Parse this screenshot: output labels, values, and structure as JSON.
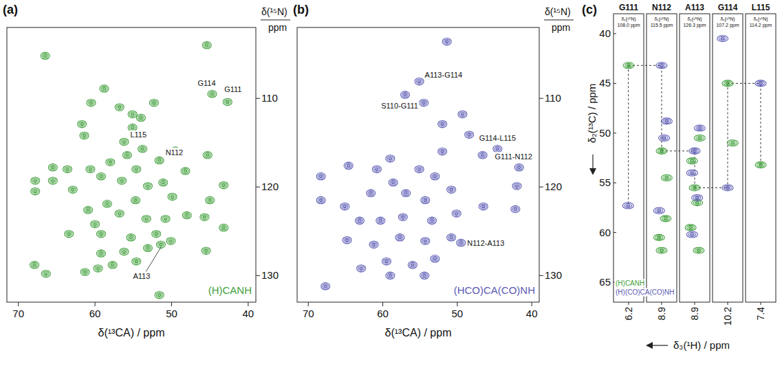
{
  "chart_data": [
    {
      "type": "scatter",
      "label": "(a)",
      "title": "(H)CANH",
      "color": "#3f9f3a",
      "xlabel": "δ(¹³CA) / ppm",
      "ylabel": [
        "δ(¹⁵N)",
        "ppm"
      ],
      "xlim": [
        71.5,
        39
      ],
      "ylim": [
        102,
        133
      ],
      "xticks": [
        70,
        60,
        50,
        40
      ],
      "yticks": [
        110,
        120,
        130
      ],
      "x": [
        45.4,
        66.5,
        44.7,
        42.7,
        58.8,
        60.5,
        52.3,
        56.8,
        55.1,
        54.0,
        61.7,
        61.4,
        55.1,
        56.2,
        53.8,
        55.8,
        51.6,
        49.5,
        48.2,
        45.3,
        65.5,
        65.5,
        67.8,
        67.8,
        63.6,
        62.9,
        60.6,
        59.2,
        58.0,
        56.5,
        54.6,
        53.1,
        51.1,
        49.9,
        54.7,
        58.4,
        60.9,
        60.0,
        56.8,
        53.3,
        50.8,
        48.0,
        45.0,
        43.2,
        45.7,
        63.4,
        59.2,
        55.3,
        52.0,
        50.1,
        53.1,
        56.2,
        59.2,
        57.7,
        59.6,
        61.3,
        54.6,
        51.4,
        67.9,
        66.4,
        51.6,
        45.5,
        43.2
      ],
      "values": [
        104.0,
        105.2,
        109.5,
        110.4,
        108.9,
        110.5,
        110.5,
        111.0,
        111.8,
        112.2,
        112.9,
        114.2,
        113.3,
        114.9,
        115.7,
        116.4,
        117.0,
        115.9,
        118.2,
        116.4,
        117.8,
        119.3,
        119.3,
        120.5,
        118.0,
        120.3,
        118.0,
        118.8,
        117.2,
        119.3,
        118.0,
        119.9,
        119.5,
        121.1,
        121.5,
        121.9,
        122.6,
        124.2,
        123.0,
        123.6,
        123.6,
        123.2,
        121.5,
        119.8,
        123.4,
        125.3,
        125.3,
        125.7,
        125.3,
        126.1,
        126.9,
        127.3,
        127.5,
        128.8,
        129.2,
        129.6,
        128.4,
        126.5,
        128.8,
        129.8,
        132.2,
        127.2,
        124.6
      ],
      "annotations": [
        {
          "text": "G114",
          "x": 44.7,
          "y": 109.5
        },
        {
          "text": "G111",
          "x": 42.7,
          "y": 110.4
        },
        {
          "text": "L115",
          "x": 56.2,
          "y": 114.9
        },
        {
          "text": "N112",
          "x": 51.6,
          "y": 117.0
        },
        {
          "text": "A113",
          "x": 51.4,
          "y": 126.5
        }
      ]
    },
    {
      "type": "scatter",
      "label": "(b)",
      "title": "(HCO)CA(CO)NH",
      "color": "#5a5ab4",
      "xlabel": "δ(¹³CA) / ppm",
      "ylabel": [
        "δ(¹⁵N)",
        "ppm"
      ],
      "xlim": [
        71.5,
        39
      ],
      "ylim": [
        102,
        133
      ],
      "xticks": [
        70,
        60,
        50,
        40
      ],
      "yticks": [
        110,
        120,
        130
      ],
      "x": [
        51.4,
        55.1,
        57.0,
        54.5,
        49.3,
        52.0,
        48.4,
        44.6,
        41.7,
        46.6,
        52.0,
        55.1,
        53.0,
        58.6,
        60.8,
        64.6,
        59.0,
        61.6,
        56.9,
        54.3,
        50.8,
        68.3,
        68.3,
        65.1,
        63.1,
        60.3,
        57.3,
        53.4,
        50.1,
        46.5,
        42.0,
        42.2,
        64.8,
        61.2,
        57.7,
        54.3,
        50.8,
        49.5,
        59.5,
        56.0,
        53.0,
        62.9,
        59.0,
        54.4,
        67.7
      ],
      "values": [
        103.6,
        108.1,
        109.6,
        110.5,
        111.8,
        112.9,
        114.1,
        115.7,
        117.8,
        116.4,
        116.0,
        118.0,
        118.8,
        119.5,
        118.0,
        117.6,
        116.8,
        120.7,
        120.7,
        121.5,
        120.3,
        118.8,
        121.5,
        122.2,
        123.8,
        123.8,
        123.4,
        123.8,
        123.0,
        122.2,
        119.9,
        122.5,
        126.0,
        126.5,
        125.7,
        126.1,
        125.7,
        126.3,
        128.4,
        128.8,
        128.1,
        129.2,
        130.0,
        130.0,
        131.2
      ],
      "annotations": [
        {
          "text": "S110-G111",
          "x": 57.0,
          "y": 109.6
        },
        {
          "text": "A113-G114",
          "x": 55.1,
          "y": 108.1
        },
        {
          "text": "G114-L115",
          "x": 44.6,
          "y": 115.7
        },
        {
          "text": "G111-N112",
          "x": 41.7,
          "y": 117.8
        },
        {
          "text": "N112-A113",
          "x": 49.5,
          "y": 126.3
        }
      ]
    },
    {
      "type": "strip",
      "label": "(c)",
      "xlabel": "δ₃(¹H) / ppm",
      "ylabel": "δ₂(¹³C) / ppm",
      "strip_subtitle": "δ₁(¹⁵N)",
      "ylim": [
        38,
        67
      ],
      "yticks": [
        40,
        45,
        50,
        55,
        60,
        65
      ],
      "legend": "bottom left",
      "strips": [
        {
          "title": "G111",
          "n15": "108.0 ppm",
          "xlim": [
            6.5,
            5.9
          ],
          "xticks": [
            6.2
          ]
        },
        {
          "title": "N112",
          "n15": "115.5 ppm",
          "xlim": [
            9.2,
            8.6
          ],
          "xticks": [
            8.9
          ]
        },
        {
          "title": "A113",
          "n15": "126.3 ppm",
          "xlim": [
            9.2,
            8.6
          ],
          "xticks": [
            8.9
          ]
        },
        {
          "title": "G114",
          "n15": "107.2 ppm",
          "xlim": [
            10.5,
            9.9
          ],
          "xticks": [
            10.2
          ]
        },
        {
          "title": "L115",
          "n15": "114.2 ppm",
          "xlim": [
            7.7,
            7.1
          ],
          "xticks": [
            7.4
          ]
        }
      ],
      "series": [
        {
          "name": "(H)CANH",
          "color": "#3f9f3a",
          "x": [
            [
              6.2
            ],
            [
              8.9,
              8.82,
              8.95,
              8.9,
              8.8
            ],
            [
              8.9,
              8.8,
              8.95,
              8.85,
              8.98,
              8.82
            ],
            [
              10.2,
              10.1
            ],
            [
              7.4
            ]
          ],
          "values": [
            [
              43.2
            ],
            [
              51.8,
              58.6,
              60.5,
              61.8,
              54.5
            ],
            [
              55.5,
              50.5,
              52.8,
              57.0,
              59.5,
              61.8
            ],
            [
              45.0,
              51.0
            ],
            [
              53.2
            ]
          ]
        },
        {
          "name": "(H)(CO)CA(CO)NH",
          "color": "#5a5ab4",
          "x": [
            [
              6.21
            ],
            [
              8.9,
              8.8,
              8.85,
              8.95
            ],
            [
              8.9,
              8.8,
              8.95,
              8.85,
              8.95
            ],
            [
              10.2,
              10.3
            ],
            [
              7.4
            ]
          ],
          "values": [
            [
              57.3
            ],
            [
              43.2,
              48.8,
              50.5,
              57.8
            ],
            [
              51.8,
              49.5,
              54.0,
              56.5,
              60.2
            ],
            [
              55.5,
              40.5
            ],
            [
              45.0
            ]
          ]
        }
      ]
    }
  ]
}
